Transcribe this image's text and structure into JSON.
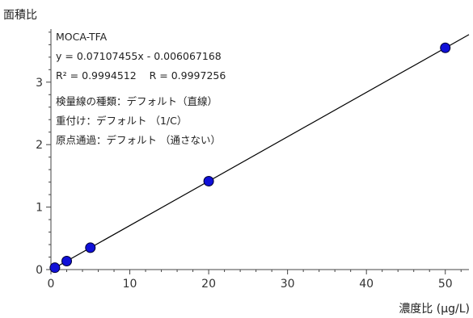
{
  "chart_data": {
    "type": "scatter",
    "ylabel": "面積比",
    "xlabel": "濃度比 (μg/L)",
    "xlim": [
      0,
      53
    ],
    "ylim": [
      0,
      3.85
    ],
    "x_ticks": [
      "0",
      "10",
      "20",
      "30",
      "40",
      "50"
    ],
    "y_ticks": [
      "0",
      "1",
      "2",
      "3"
    ],
    "x": [
      0.5,
      2,
      5,
      20,
      50
    ],
    "y": [
      0.03,
      0.136,
      0.35,
      1.415,
      3.55
    ],
    "fit": {
      "slope": 0.07107455,
      "intercept": -0.006067168
    },
    "marker_color": "#1010d8",
    "line_color": "#000000",
    "annotations": {
      "compound": "MOCA-TFA",
      "equation": "y = 0.07107455x - 0.006067168",
      "r_values": "R² = 0.9994512    R = 0.9997256",
      "curve_type": "検量線の種類：デフォルト（直線）",
      "weighting": "重付け：デフォルト （1/C）",
      "origin": "原点通過：デフォルト （通さない）"
    }
  }
}
